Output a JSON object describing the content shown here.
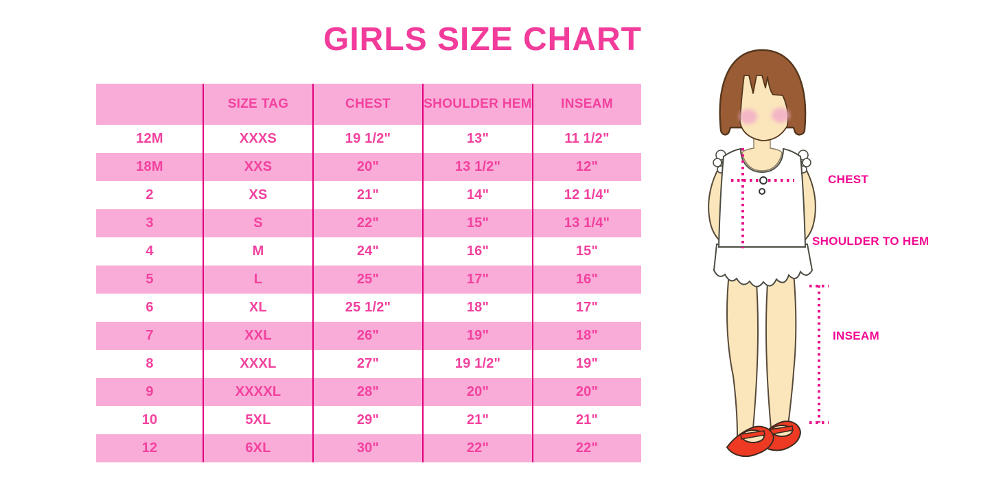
{
  "title": "GIRLS SIZE CHART",
  "chart_data": {
    "type": "table",
    "title": "GIRLS SIZE CHART",
    "columns": [
      "",
      "SIZE TAG",
      "CHEST",
      "SHOULDER HEM",
      "INSEAM"
    ],
    "rows": [
      [
        "12M",
        "XXXS",
        "19 1/2\"",
        "13\"",
        "11 1/2\""
      ],
      [
        "18M",
        "XXS",
        "20\"",
        "13 1/2\"",
        "12\""
      ],
      [
        "2",
        "XS",
        "21\"",
        "14\"",
        "12 1/4\""
      ],
      [
        "3",
        "S",
        "22\"",
        "15\"",
        "13 1/4\""
      ],
      [
        "4",
        "M",
        "24\"",
        "16\"",
        "15\""
      ],
      [
        "5",
        "L",
        "25\"",
        "17\"",
        "16\""
      ],
      [
        "6",
        "XL",
        "25 1/2\"",
        "18\"",
        "17\""
      ],
      [
        "7",
        "XXL",
        "26\"",
        "19\"",
        "18\""
      ],
      [
        "8",
        "XXXL",
        "27\"",
        "19 1/2\"",
        "19\""
      ],
      [
        "9",
        "XXXXL",
        "28\"",
        "20\"",
        "20\""
      ],
      [
        "10",
        "5XL",
        "29\"",
        "21\"",
        "21\""
      ],
      [
        "12",
        "6XL",
        "30\"",
        "22\"",
        "22\""
      ]
    ],
    "layout": {
      "row_striping": [
        "pink-header",
        "white",
        "pink",
        "white",
        "pink",
        "white",
        "pink",
        "white",
        "pink",
        "white",
        "pink",
        "white",
        "pink"
      ],
      "gridlines": "vertical-only"
    }
  },
  "figure": {
    "labels": {
      "chest": "CHEST",
      "shoulder_to_hem": "SHOULDER TO HEM",
      "inseam": "INSEAM"
    }
  },
  "colors": {
    "title_text": "#F23C9B",
    "table_text": "#F2419E",
    "band_pink": "#F9ACD8",
    "divider_line": "#E1017D",
    "measure_label_text": "#F20790",
    "dotted_line": "#E91189",
    "hair_brown": "#9A5C35",
    "skin": "#FBE6BC",
    "shoe_red": "#EE3A23"
  }
}
